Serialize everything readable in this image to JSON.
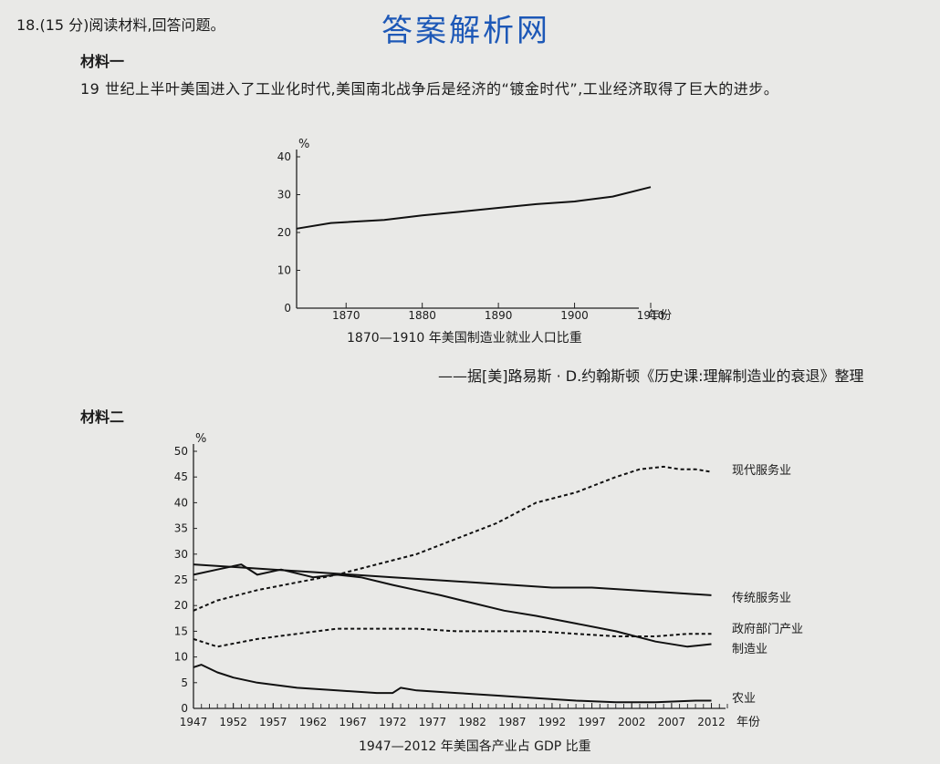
{
  "question": {
    "header": "18.(15 分)阅读材料,回答问题。",
    "watermark": "答案解析网"
  },
  "material1": {
    "title": "材料一",
    "text": "19 世纪上半叶美国进入了工业化时代,美国南北战争后是经济的“镀金时代”,工业经济取得了巨大的进步。",
    "source": "——据[美]路易斯 · D.约翰斯顿《历史课:理解制造业的衰退》整理"
  },
  "material2": {
    "title": "材料二"
  },
  "chart_data": [
    {
      "type": "line",
      "title": "1870—1910 年美国制造业就业人口比重",
      "xlabel": "年份",
      "ylabel": "%",
      "x_ticks": [
        1870,
        1880,
        1890,
        1900,
        1910
      ],
      "y_ticks": [
        0,
        10,
        20,
        30,
        40
      ],
      "xlim": [
        1863.5,
        1910
      ],
      "ylim": [
        0,
        40
      ],
      "series": [
        {
          "x": [
            1863.5,
            1868,
            1875,
            1880,
            1885,
            1890,
            1895,
            1900,
            1905,
            1910
          ],
          "values": [
            21,
            22.5,
            23.3,
            24.5,
            25.5,
            26.5,
            27.5,
            28.2,
            29.5,
            32
          ]
        }
      ]
    },
    {
      "type": "line",
      "title": "1947—2012 年美国各产业占 GDP 比重",
      "xlabel": "年份",
      "ylabel": "%",
      "x_ticks": [
        1947,
        1952,
        1957,
        1962,
        1967,
        1972,
        1977,
        1982,
        1987,
        1992,
        1997,
        2002,
        2007,
        2012
      ],
      "y_ticks": [
        0,
        5,
        10,
        15,
        20,
        25,
        30,
        35,
        40,
        45,
        50
      ],
      "xlim": [
        1947,
        2014
      ],
      "ylim": [
        0,
        50
      ],
      "series": [
        {
          "name": "现代服务业",
          "style": "dashed",
          "x": [
            1947,
            1950,
            1955,
            1960,
            1965,
            1970,
            1975,
            1980,
            1985,
            1990,
            1995,
            2000,
            2003,
            2006,
            2008,
            2010,
            2012
          ],
          "values": [
            19,
            21,
            23,
            24.5,
            26,
            28,
            30,
            33,
            36,
            40,
            42,
            45,
            46.5,
            47,
            46.5,
            46.5,
            46
          ]
        },
        {
          "name": "传统服务业",
          "style": "solid",
          "x": [
            1947,
            1952,
            1957,
            1962,
            1967,
            1972,
            1977,
            1982,
            1987,
            1992,
            1997,
            2002,
            2007,
            2012
          ],
          "values": [
            28,
            27.5,
            27,
            26.5,
            26,
            25.5,
            25,
            24.5,
            24,
            23.5,
            23.5,
            23,
            22.5,
            22
          ]
        },
        {
          "name": "政府部门产业",
          "style": "dashed",
          "x": [
            1947,
            1950,
            1955,
            1960,
            1965,
            1970,
            1975,
            1980,
            1985,
            1990,
            1995,
            2000,
            2005,
            2009,
            2012
          ],
          "values": [
            13.5,
            12,
            13.5,
            14.5,
            15.5,
            15.5,
            15.5,
            15,
            15,
            15,
            14.5,
            14,
            14,
            14.5,
            14.5
          ]
        },
        {
          "name": "制造业",
          "style": "solid",
          "x": [
            1947,
            1950,
            1953,
            1955,
            1958,
            1962,
            1965,
            1968,
            1972,
            1975,
            1978,
            1982,
            1986,
            1990,
            1995,
            2000,
            2005,
            2009,
            2012
          ],
          "values": [
            26,
            27,
            28,
            26,
            27,
            25.5,
            26,
            25.5,
            24,
            23,
            22,
            20.5,
            19,
            18,
            16.5,
            15,
            13,
            12,
            12.5
          ]
        },
        {
          "name": "农业",
          "style": "solid",
          "x": [
            1947,
            1948,
            1950,
            1952,
            1955,
            1960,
            1965,
            1970,
            1972,
            1973,
            1975,
            1980,
            1985,
            1990,
            1995,
            2000,
            2005,
            2010,
            2012
          ],
          "values": [
            8,
            8.5,
            7,
            6,
            5,
            4,
            3.5,
            3,
            3,
            4,
            3.5,
            3,
            2.5,
            2,
            1.5,
            1.2,
            1.2,
            1.5,
            1.5
          ]
        }
      ]
    }
  ]
}
